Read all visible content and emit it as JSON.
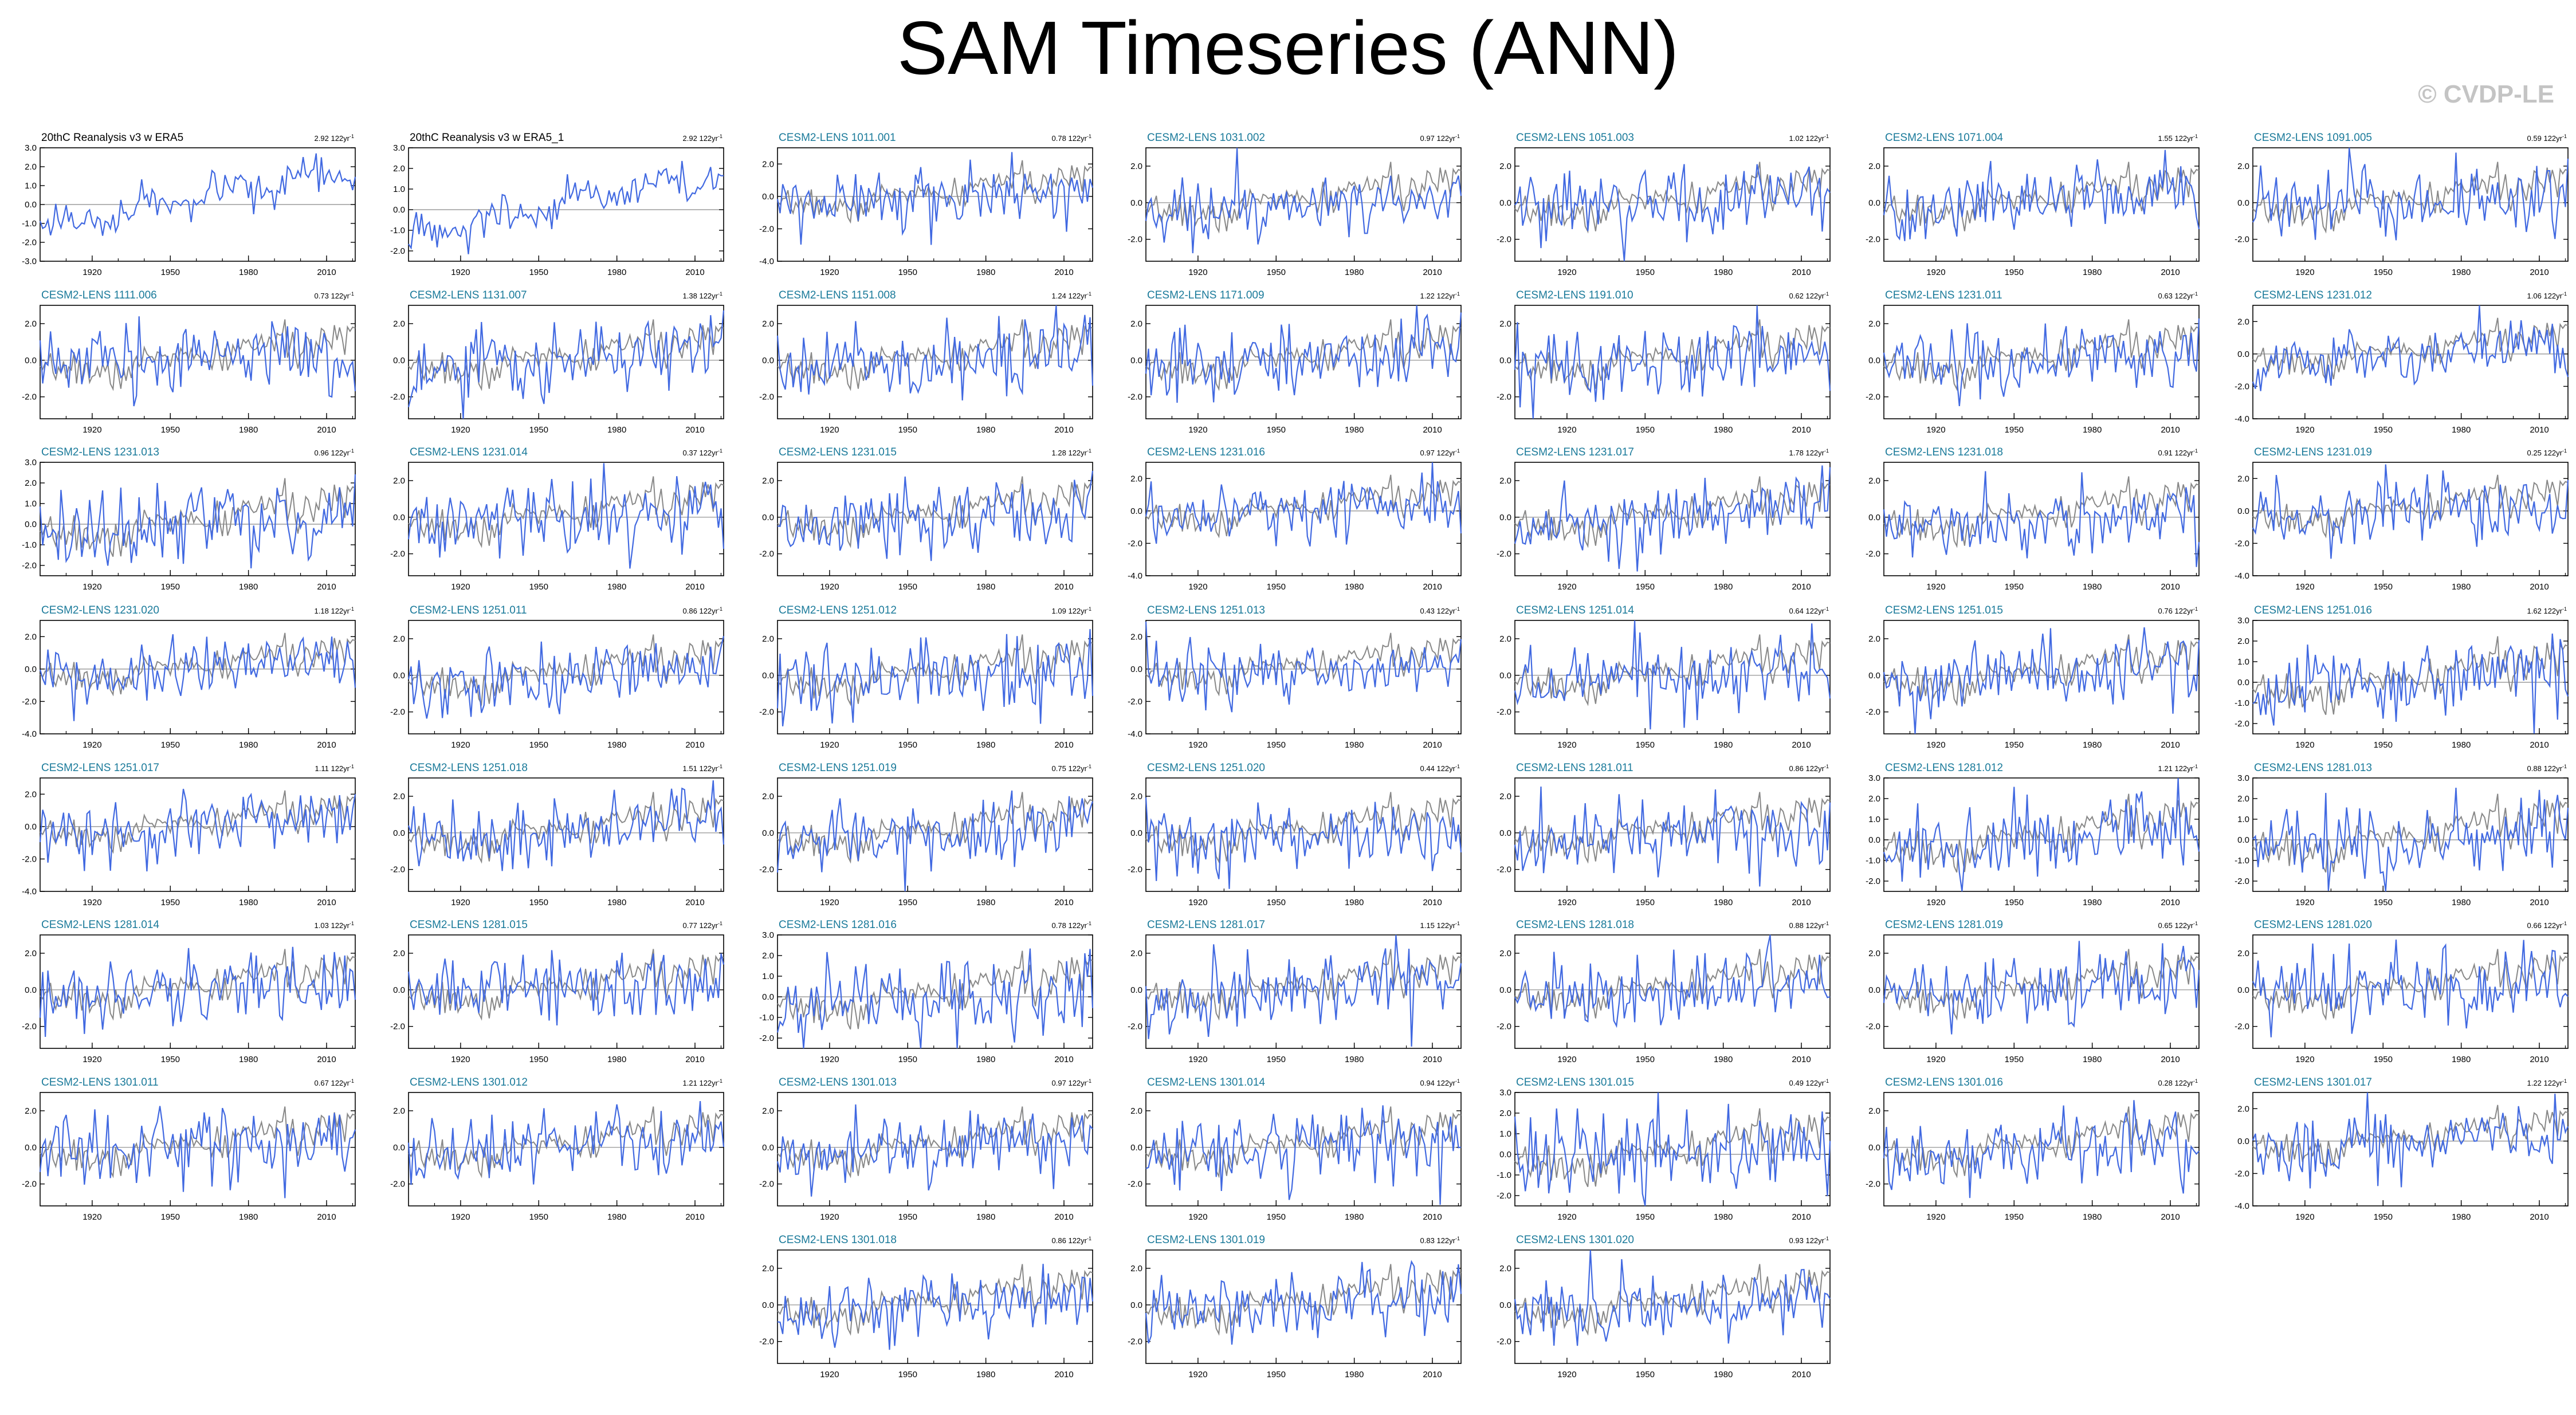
{
  "title": "SAM Timeseries (ANN)",
  "copyright": "© CVDP-LE",
  "colors": {
    "obs_line": "#4169e1",
    "model_line": "#4169e1",
    "reference_line": "#888888",
    "title_obs": "#000000",
    "title_model": "#1a7a9a"
  },
  "chart_data": {
    "type": "line",
    "x_ticks": [
      "1920",
      "1950",
      "1980",
      "2010"
    ],
    "xlim": [
      1900,
      2021
    ],
    "panels": [
      {
        "title": "20thC Reanalysis v3 w ERA5",
        "trend_value": "2.92",
        "trend_unit": "122yr",
        "yticks": [
          "3.0",
          "2.0",
          "1.0",
          "0.0",
          "-1.0",
          "-2.0",
          "-3.0"
        ],
        "ylim": [
          -3,
          3
        ],
        "obs": true
      },
      {
        "title": "20thC Reanalysis v3 w ERA5_1",
        "trend_value": "2.92",
        "trend_unit": "122yr",
        "yticks": [
          "3.0",
          "2.0",
          "1.0",
          "0.0",
          "-1.0",
          "-2.0"
        ],
        "ylim": [
          -2.5,
          3
        ],
        "obs": true
      },
      {
        "title": "CESM2-LENS 1011.001",
        "trend_value": "0.78",
        "trend_unit": "122yr",
        "yticks": [
          "2.0",
          "0.0",
          "-2.0",
          "-4.0"
        ],
        "ylim": [
          -4,
          3
        ]
      },
      {
        "title": "CESM2-LENS 1031.002",
        "trend_value": "0.97",
        "trend_unit": "122yr",
        "yticks": [
          "2.0",
          "0.0",
          "-2.0"
        ],
        "ylim": [
          -3.2,
          3
        ]
      },
      {
        "title": "CESM2-LENS 1051.003",
        "trend_value": "1.02",
        "trend_unit": "122yr",
        "yticks": [
          "2.0",
          "0.0",
          "-2.0"
        ],
        "ylim": [
          -3.2,
          3
        ]
      },
      {
        "title": "CESM2-LENS 1071.004",
        "trend_value": "1.55",
        "trend_unit": "122yr",
        "yticks": [
          "2.0",
          "0.0",
          "-2.0"
        ],
        "ylim": [
          -3.2,
          3
        ]
      },
      {
        "title": "CESM2-LENS 1091.005",
        "trend_value": "0.59",
        "trend_unit": "122yr",
        "yticks": [
          "2.0",
          "0.0",
          "-2.0"
        ],
        "ylim": [
          -3.2,
          3
        ]
      },
      {
        "title": "CESM2-LENS 1111.006",
        "trend_value": "0.73",
        "trend_unit": "122yr",
        "yticks": [
          "2.0",
          "0.0",
          "-2.0"
        ],
        "ylim": [
          -3.2,
          3
        ]
      },
      {
        "title": "CESM2-LENS 1131.007",
        "trend_value": "1.38",
        "trend_unit": "122yr",
        "yticks": [
          "2.0",
          "0.0",
          "-2.0"
        ],
        "ylim": [
          -3.2,
          3
        ]
      },
      {
        "title": "CESM2-LENS 1151.008",
        "trend_value": "1.24",
        "trend_unit": "122yr",
        "yticks": [
          "2.0",
          "0.0",
          "-2.0"
        ],
        "ylim": [
          -3.2,
          3
        ]
      },
      {
        "title": "CESM2-LENS 1171.009",
        "trend_value": "1.22",
        "trend_unit": "122yr",
        "yticks": [
          "2.0",
          "0.0",
          "-2.0"
        ],
        "ylim": [
          -3.2,
          3
        ]
      },
      {
        "title": "CESM2-LENS 1191.010",
        "trend_value": "0.62",
        "trend_unit": "122yr",
        "yticks": [
          "2.0",
          "0.0",
          "-2.0"
        ],
        "ylim": [
          -3.2,
          3
        ]
      },
      {
        "title": "CESM2-LENS 1231.011",
        "trend_value": "0.63",
        "trend_unit": "122yr",
        "yticks": [
          "2.0",
          "0.0",
          "-2.0"
        ],
        "ylim": [
          -3.2,
          3
        ]
      },
      {
        "title": "CESM2-LENS 1231.012",
        "trend_value": "1.06",
        "trend_unit": "122yr",
        "yticks": [
          "2.0",
          "0.0",
          "-2.0",
          "-4.0"
        ],
        "ylim": [
          -4,
          3
        ]
      },
      {
        "title": "CESM2-LENS 1231.013",
        "trend_value": "0.96",
        "trend_unit": "122yr",
        "yticks": [
          "3.0",
          "2.0",
          "1.0",
          "0.0",
          "-1.0",
          "-2.0"
        ],
        "ylim": [
          -2.5,
          3
        ]
      },
      {
        "title": "CESM2-LENS 1231.014",
        "trend_value": "0.37",
        "trend_unit": "122yr",
        "yticks": [
          "2.0",
          "0.0",
          "-2.0"
        ],
        "ylim": [
          -3.2,
          3
        ]
      },
      {
        "title": "CESM2-LENS 1231.015",
        "trend_value": "1.28",
        "trend_unit": "122yr",
        "yticks": [
          "2.0",
          "0.0",
          "-2.0"
        ],
        "ylim": [
          -3.2,
          3
        ]
      },
      {
        "title": "CESM2-LENS 1231.016",
        "trend_value": "0.97",
        "trend_unit": "122yr",
        "yticks": [
          "2.0",
          "0.0",
          "-2.0",
          "-4.0"
        ],
        "ylim": [
          -4,
          3
        ]
      },
      {
        "title": "CESM2-LENS 1231.017",
        "trend_value": "1.78",
        "trend_unit": "122yr",
        "yticks": [
          "2.0",
          "0.0",
          "-2.0"
        ],
        "ylim": [
          -3.2,
          3
        ]
      },
      {
        "title": "CESM2-LENS 1231.018",
        "trend_value": "0.91",
        "trend_unit": "122yr",
        "yticks": [
          "2.0",
          "0.0",
          "-2.0"
        ],
        "ylim": [
          -3.2,
          3
        ]
      },
      {
        "title": "CESM2-LENS 1231.019",
        "trend_value": "0.25",
        "trend_unit": "122yr",
        "yticks": [
          "2.0",
          "0.0",
          "-2.0",
          "-4.0"
        ],
        "ylim": [
          -4,
          3
        ]
      },
      {
        "title": "CESM2-LENS 1231.020",
        "trend_value": "1.18",
        "trend_unit": "122yr",
        "yticks": [
          "2.0",
          "0.0",
          "-2.0",
          "-4.0"
        ],
        "ylim": [
          -4,
          3
        ]
      },
      {
        "title": "CESM2-LENS 1251.011",
        "trend_value": "0.86",
        "trend_unit": "122yr",
        "yticks": [
          "2.0",
          "0.0",
          "-2.0"
        ],
        "ylim": [
          -3.2,
          3
        ]
      },
      {
        "title": "CESM2-LENS 1251.012",
        "trend_value": "1.09",
        "trend_unit": "122yr",
        "yticks": [
          "2.0",
          "0.0",
          "-2.0"
        ],
        "ylim": [
          -3.2,
          3
        ]
      },
      {
        "title": "CESM2-LENS 1251.013",
        "trend_value": "0.43",
        "trend_unit": "122yr",
        "yticks": [
          "2.0",
          "0.0",
          "-2.0",
          "-4.0"
        ],
        "ylim": [
          -4,
          3
        ]
      },
      {
        "title": "CESM2-LENS 1251.014",
        "trend_value": "0.64",
        "trend_unit": "122yr",
        "yticks": [
          "2.0",
          "0.0",
          "-2.0"
        ],
        "ylim": [
          -3.2,
          3
        ]
      },
      {
        "title": "CESM2-LENS 1251.015",
        "trend_value": "0.76",
        "trend_unit": "122yr",
        "yticks": [
          "2.0",
          "0.0",
          "-2.0"
        ],
        "ylim": [
          -3.2,
          3
        ]
      },
      {
        "title": "CESM2-LENS 1251.016",
        "trend_value": "1.62",
        "trend_unit": "122yr",
        "yticks": [
          "3.0",
          "2.0",
          "1.0",
          "0.0",
          "-1.0",
          "-2.0"
        ],
        "ylim": [
          -2.5,
          3
        ]
      },
      {
        "title": "CESM2-LENS 1251.017",
        "trend_value": "1.11",
        "trend_unit": "122yr",
        "yticks": [
          "2.0",
          "0.0",
          "-2.0",
          "-4.0"
        ],
        "ylim": [
          -4,
          3
        ]
      },
      {
        "title": "CESM2-LENS 1251.018",
        "trend_value": "1.51",
        "trend_unit": "122yr",
        "yticks": [
          "2.0",
          "0.0",
          "-2.0"
        ],
        "ylim": [
          -3.2,
          3
        ]
      },
      {
        "title": "CESM2-LENS 1251.019",
        "trend_value": "0.75",
        "trend_unit": "122yr",
        "yticks": [
          "2.0",
          "0.0",
          "-2.0"
        ],
        "ylim": [
          -3.2,
          3
        ]
      },
      {
        "title": "CESM2-LENS 1251.020",
        "trend_value": "0.44",
        "trend_unit": "122yr",
        "yticks": [
          "2.0",
          "0.0",
          "-2.0"
        ],
        "ylim": [
          -3.2,
          3
        ]
      },
      {
        "title": "CESM2-LENS 1281.011",
        "trend_value": "0.86",
        "trend_unit": "122yr",
        "yticks": [
          "2.0",
          "0.0",
          "-2.0"
        ],
        "ylim": [
          -3.2,
          3
        ]
      },
      {
        "title": "CESM2-LENS 1281.012",
        "trend_value": "1.21",
        "trend_unit": "122yr",
        "yticks": [
          "3.0",
          "2.0",
          "1.0",
          "0.0",
          "-1.0",
          "-2.0"
        ],
        "ylim": [
          -2.5,
          3
        ]
      },
      {
        "title": "CESM2-LENS 1281.013",
        "trend_value": "0.88",
        "trend_unit": "122yr",
        "yticks": [
          "3.0",
          "2.0",
          "1.0",
          "0.0",
          "-1.0",
          "-2.0"
        ],
        "ylim": [
          -2.5,
          3
        ]
      },
      {
        "title": "CESM2-LENS 1281.014",
        "trend_value": "1.03",
        "trend_unit": "122yr",
        "yticks": [
          "2.0",
          "0.0",
          "-2.0"
        ],
        "ylim": [
          -3.2,
          3
        ]
      },
      {
        "title": "CESM2-LENS 1281.015",
        "trend_value": "0.77",
        "trend_unit": "122yr",
        "yticks": [
          "2.0",
          "0.0",
          "-2.0"
        ],
        "ylim": [
          -3.2,
          3
        ]
      },
      {
        "title": "CESM2-LENS 1281.016",
        "trend_value": "0.78",
        "trend_unit": "122yr",
        "yticks": [
          "3.0",
          "2.0",
          "1.0",
          "0.0",
          "-1.0",
          "-2.0"
        ],
        "ylim": [
          -2.5,
          3
        ]
      },
      {
        "title": "CESM2-LENS 1281.017",
        "trend_value": "1.15",
        "trend_unit": "122yr",
        "yticks": [
          "2.0",
          "0.0",
          "-2.0"
        ],
        "ylim": [
          -3.2,
          3
        ]
      },
      {
        "title": "CESM2-LENS 1281.018",
        "trend_value": "0.88",
        "trend_unit": "122yr",
        "yticks": [
          "2.0",
          "0.0",
          "-2.0"
        ],
        "ylim": [
          -3.2,
          3
        ]
      },
      {
        "title": "CESM2-LENS 1281.019",
        "trend_value": "0.65",
        "trend_unit": "122yr",
        "yticks": [
          "2.0",
          "0.0",
          "-2.0"
        ],
        "ylim": [
          -3.2,
          3
        ]
      },
      {
        "title": "CESM2-LENS 1281.020",
        "trend_value": "0.66",
        "trend_unit": "122yr",
        "yticks": [
          "2.0",
          "0.0",
          "-2.0"
        ],
        "ylim": [
          -3.2,
          3
        ]
      },
      {
        "title": "CESM2-LENS 1301.011",
        "trend_value": "0.67",
        "trend_unit": "122yr",
        "yticks": [
          "2.0",
          "0.0",
          "-2.0"
        ],
        "ylim": [
          -3.2,
          3
        ]
      },
      {
        "title": "CESM2-LENS 1301.012",
        "trend_value": "1.21",
        "trend_unit": "122yr",
        "yticks": [
          "2.0",
          "0.0",
          "-2.0"
        ],
        "ylim": [
          -3.2,
          3
        ]
      },
      {
        "title": "CESM2-LENS 1301.013",
        "trend_value": "0.97",
        "trend_unit": "122yr",
        "yticks": [
          "2.0",
          "0.0",
          "-2.0"
        ],
        "ylim": [
          -3.2,
          3
        ]
      },
      {
        "title": "CESM2-LENS 1301.014",
        "trend_value": "0.94",
        "trend_unit": "122yr",
        "yticks": [
          "2.0",
          "0.0",
          "-2.0"
        ],
        "ylim": [
          -3.2,
          3
        ]
      },
      {
        "title": "CESM2-LENS 1301.015",
        "trend_value": "0.49",
        "trend_unit": "122yr",
        "yticks": [
          "3.0",
          "2.0",
          "1.0",
          "0.0",
          "-1.0",
          "-2.0"
        ],
        "ylim": [
          -2.5,
          3
        ]
      },
      {
        "title": "CESM2-LENS 1301.016",
        "trend_value": "0.28",
        "trend_unit": "122yr",
        "yticks": [
          "2.0",
          "0.0",
          "-2.0"
        ],
        "ylim": [
          -3.2,
          3
        ]
      },
      {
        "title": "CESM2-LENS 1301.017",
        "trend_value": "1.22",
        "trend_unit": "122yr",
        "yticks": [
          "2.0",
          "0.0",
          "-2.0",
          "-4.0"
        ],
        "ylim": [
          -4,
          3
        ]
      },
      {
        "title": "CESM2-LENS 1301.018",
        "trend_value": "0.86",
        "trend_unit": "122yr",
        "yticks": [
          "2.0",
          "0.0",
          "-2.0"
        ],
        "ylim": [
          -3.2,
          3
        ]
      },
      {
        "title": "CESM2-LENS 1301.019",
        "trend_value": "0.83",
        "trend_unit": "122yr",
        "yticks": [
          "2.0",
          "0.0",
          "-2.0"
        ],
        "ylim": [
          -3.2,
          3
        ]
      },
      {
        "title": "CESM2-LENS 1301.020",
        "trend_value": "0.93",
        "trend_unit": "122yr",
        "yticks": [
          "2.0",
          "0.0",
          "-2.0"
        ],
        "ylim": [
          -3.2,
          3
        ]
      }
    ]
  }
}
